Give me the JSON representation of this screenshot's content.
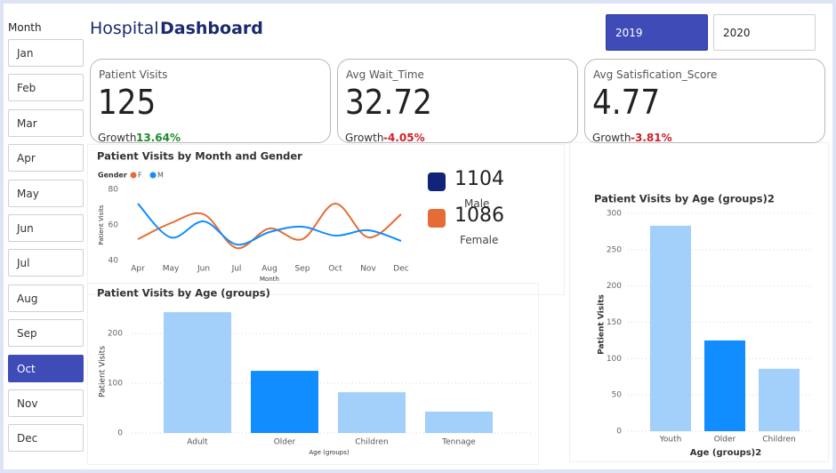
{
  "slicer": {
    "title": "Month",
    "items": [
      "Jan",
      "Feb",
      "Mar",
      "Apr",
      "May",
      "Jun",
      "Jul",
      "Aug",
      "Sep",
      "Oct",
      "Nov",
      "Dec"
    ],
    "selected": 9
  },
  "header": {
    "title_light": "Hospital",
    "title_bold": "Dashboard"
  },
  "year_buttons": {
    "items": [
      "2019",
      "2020"
    ],
    "selected": 0
  },
  "cards": [
    {
      "label": "Patient Visits",
      "value": 125,
      "growth_label": "Growth",
      "growth": "13.64%",
      "growth_color": "#1e8a2e"
    },
    {
      "label": "Avg Wait_Time",
      "value": 32.72,
      "growth_label": "Growth",
      "growth": "-4.05%",
      "growth_color": "#d0202a"
    },
    {
      "label": "Avg Satisfication_Score",
      "value": 4.77,
      "growth_label": "Growth",
      "growth": "-3.81%",
      "growth_color": "#d0202a"
    }
  ],
  "gender_totals": [
    {
      "value": 1104,
      "label": "Male",
      "color": "#14237a"
    },
    {
      "value": 1086,
      "label": "Female",
      "color": "#e66c37"
    }
  ],
  "chart_data": [
    {
      "type": "line",
      "title": "Patient Visits by Month and Gender",
      "legend_title": "Gender",
      "categories": [
        "Apr",
        "May",
        "Jun",
        "Jul",
        "Aug",
        "Sep",
        "Oct",
        "Nov",
        "Dec"
      ],
      "series": [
        {
          "name": "F",
          "color": "#e66c37",
          "values": [
            52,
            61,
            66,
            47,
            58,
            52,
            72,
            53,
            66
          ]
        },
        {
          "name": "M",
          "color": "#118dff",
          "values": [
            72,
            53,
            62,
            49,
            56,
            59,
            54,
            57,
            51
          ]
        }
      ],
      "ylim": [
        40,
        80
      ],
      "yticks": [
        40,
        60,
        80
      ],
      "y_label": "Patient Visits",
      "x_label": "Month",
      "grid": false
    },
    {
      "type": "bar",
      "title": "Patient Visits by Age (groups)",
      "categories": [
        "Adult",
        "Older",
        "Children",
        "Tennage"
      ],
      "values": [
        243,
        125,
        82,
        43
      ],
      "colors": [
        "#a3cffb",
        "#118dff",
        "#a3cffb",
        "#a3cffb"
      ],
      "ylim": [
        0,
        245
      ],
      "yticks": [
        0,
        100,
        200
      ],
      "y_label": "Patient Visits",
      "x_label": "Age (groups)",
      "grid": true
    },
    {
      "type": "bar",
      "title": "Patient Visits by Age (groups)2",
      "categories": [
        "Youth",
        "Older",
        "Children"
      ],
      "values": [
        283,
        125,
        86
      ],
      "colors": [
        "#a3cffb",
        "#118dff",
        "#a3cffb"
      ],
      "ylim": [
        0,
        300
      ],
      "yticks": [
        0,
        50,
        100,
        150,
        200,
        250,
        300
      ],
      "y_label": "Patient Visits",
      "x_label": "Age (groups)2",
      "grid": true
    }
  ]
}
